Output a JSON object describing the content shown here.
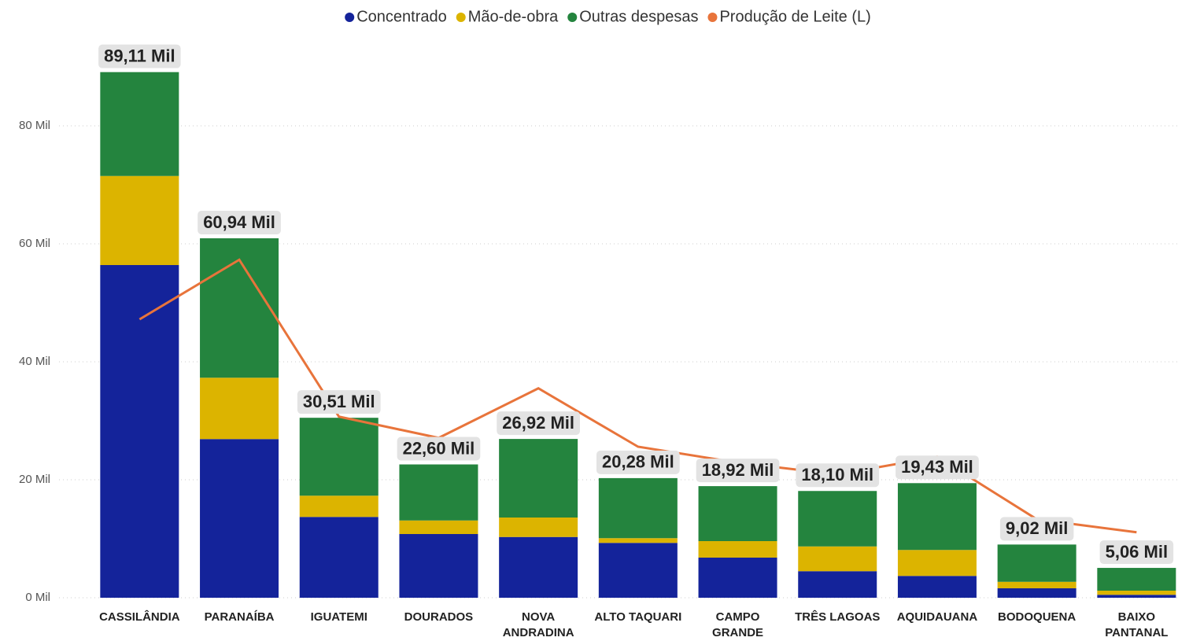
{
  "chart_data": {
    "type": "stacked-bar-line",
    "categories": [
      "CASSILÂNDIA",
      "PARANAÍBA",
      "IGUATEMI",
      "DOURADOS",
      "NOVA ANDRADINA",
      "ALTO TAQUARI",
      "CAMPO GRANDE",
      "TRÊS LAGOAS",
      "AQUIDAUANA",
      "BODOQUENA",
      "BAIXO PANTANAL"
    ],
    "series": [
      {
        "name": "Concentrado",
        "color": "#14239a",
        "kind": "bar",
        "values": [
          56.4,
          26.9,
          13.7,
          10.8,
          10.3,
          9.3,
          6.8,
          4.5,
          3.7,
          1.6,
          0.5
        ]
      },
      {
        "name": "Mão-de-obra",
        "color": "#dcb400",
        "kind": "bar",
        "values": [
          15.1,
          10.4,
          3.6,
          2.3,
          3.3,
          0.8,
          2.8,
          4.2,
          4.4,
          1.1,
          0.7
        ]
      },
      {
        "name": "Outras despesas",
        "color": "#24843e",
        "kind": "bar",
        "values": [
          17.61,
          23.64,
          13.21,
          9.5,
          13.32,
          10.18,
          9.32,
          9.4,
          11.33,
          6.32,
          3.86
        ]
      },
      {
        "name": "Produção de Leite (L)",
        "color": "#e8743b",
        "kind": "line",
        "values": [
          47.2,
          57.3,
          30.7,
          27.1,
          35.5,
          25.6,
          22.9,
          20.9,
          23.9,
          13.3,
          11.1
        ]
      }
    ],
    "totals": [
      89.11,
      60.94,
      30.51,
      22.6,
      26.92,
      20.28,
      18.92,
      18.1,
      19.43,
      9.02,
      5.06
    ],
    "total_labels": [
      "89,11 Mil",
      "60,94 Mil",
      "30,51 Mil",
      "22,60 Mil",
      "26,92 Mil",
      "20,28 Mil",
      "18,92 Mil",
      "18,10 Mil",
      "19,43 Mil",
      "9,02 Mil",
      "5,06 Mil"
    ],
    "ylim": [
      0,
      90
    ],
    "yticks": [
      {
        "value": 0,
        "label": "0 Mil"
      },
      {
        "value": 20,
        "label": "20 Mil"
      },
      {
        "value": 40,
        "label": "40 Mil"
      },
      {
        "value": 60,
        "label": "60 Mil"
      },
      {
        "value": 80,
        "label": "80 Mil"
      }
    ],
    "grid": true,
    "legend": "top"
  }
}
